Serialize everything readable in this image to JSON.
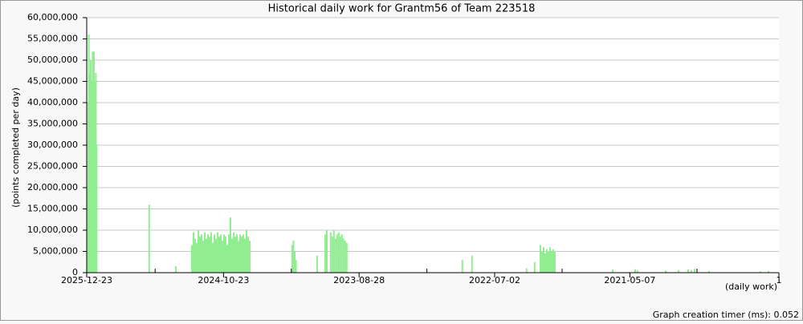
{
  "chart_data": {
    "type": "bar",
    "title": "Historical daily work for Grantm56 of Team 223518",
    "y_label": "(points completed per day)",
    "x_label": "(daily work)",
    "footer": "Graph creation timer (ms): 0.052",
    "color": "#90ee90",
    "grid": true,
    "xlim": [
      0,
      2155
    ],
    "xticks": [
      {
        "value": 0,
        "label": "2025-12-23"
      },
      {
        "value": 426,
        "label": "2024-10-23"
      },
      {
        "value": 848,
        "label": "2023-08-28"
      },
      {
        "value": 1270,
        "label": "2022-07-02"
      },
      {
        "value": 1691,
        "label": "2021-05-07"
      },
      {
        "value": 2155,
        "label": "1"
      }
    ],
    "xminorticks": [
      213,
      637,
      1059,
      1480,
      1900
    ],
    "ylim": [
      0,
      60000000
    ],
    "yticks": [
      0,
      {
        "value": 5000000,
        "label": "5,000,000"
      },
      {
        "value": 10000000,
        "label": "10,000,000"
      },
      {
        "value": 15000000,
        "label": "15,000,000"
      },
      {
        "value": 20000000,
        "label": "20,000,000"
      },
      {
        "value": 25000000,
        "label": "25,000,000"
      },
      {
        "value": 30000000,
        "label": "30,000,000"
      },
      {
        "value": 35000000,
        "label": "35,000,000"
      },
      {
        "value": 40000000,
        "label": "40,000,000"
      },
      {
        "value": 45000000,
        "label": "45,000,000"
      },
      {
        "value": 50000000,
        "label": "50,000,000"
      },
      {
        "value": 55000000,
        "label": "55,000,000"
      },
      {
        "value": 60000000,
        "label": "60,000,000"
      }
    ],
    "x": [
      0,
      2,
      4,
      6,
      8,
      10,
      12,
      14,
      16,
      18,
      20,
      22,
      24,
      26,
      28,
      192,
      275,
      325,
      330,
      335,
      340,
      345,
      350,
      355,
      360,
      365,
      370,
      375,
      380,
      385,
      390,
      395,
      400,
      405,
      410,
      415,
      420,
      425,
      430,
      435,
      440,
      445,
      450,
      455,
      460,
      465,
      470,
      475,
      480,
      485,
      490,
      495,
      500,
      505,
      637,
      641,
      645,
      649,
      715,
      740,
      745,
      757,
      762,
      767,
      772,
      777,
      782,
      787,
      792,
      797,
      802,
      807,
      1167,
      1197,
      1367,
      1392,
      1410,
      1415,
      1420,
      1425,
      1430,
      1435,
      1440,
      1445,
      1450,
      1455,
      1635,
      1705,
      1712,
      1800,
      1840,
      1870,
      1880,
      1890,
      1935,
      2095,
      2120
    ],
    "values": [
      20000000,
      40000000,
      56000000,
      30000000,
      47000000,
      50000000,
      38000000,
      45000000,
      52000000,
      46000000,
      52000000,
      45000000,
      20000000,
      47000000,
      30000000,
      16000000,
      1500000,
      6500000,
      9500000,
      8000000,
      7000000,
      10000000,
      8500000,
      9000000,
      7500000,
      9500000,
      8000000,
      9000000,
      8500000,
      9500000,
      7000000,
      9000000,
      8000000,
      9500000,
      8500000,
      9000000,
      7500000,
      9000000,
      8500000,
      6500000,
      9000000,
      13000000,
      8000000,
      9500000,
      8500000,
      9000000,
      7500000,
      9000000,
      8500000,
      9000000,
      8000000,
      10000000,
      8500000,
      7500000,
      6500000,
      7500000,
      5000000,
      3000000,
      4000000,
      9000000,
      10000000,
      9500000,
      8500000,
      10000000,
      8000000,
      9000000,
      9500000,
      8500000,
      9000000,
      8000000,
      7500000,
      7000000,
      3000000,
      4000000,
      1000000,
      2500000,
      6500000,
      5000000,
      6000000,
      4500000,
      5500000,
      5000000,
      6000000,
      5000000,
      5500000,
      5000000,
      800000,
      800000,
      600000,
      500000,
      600000,
      800000,
      600000,
      900000,
      400000,
      300000,
      400000
    ]
  }
}
